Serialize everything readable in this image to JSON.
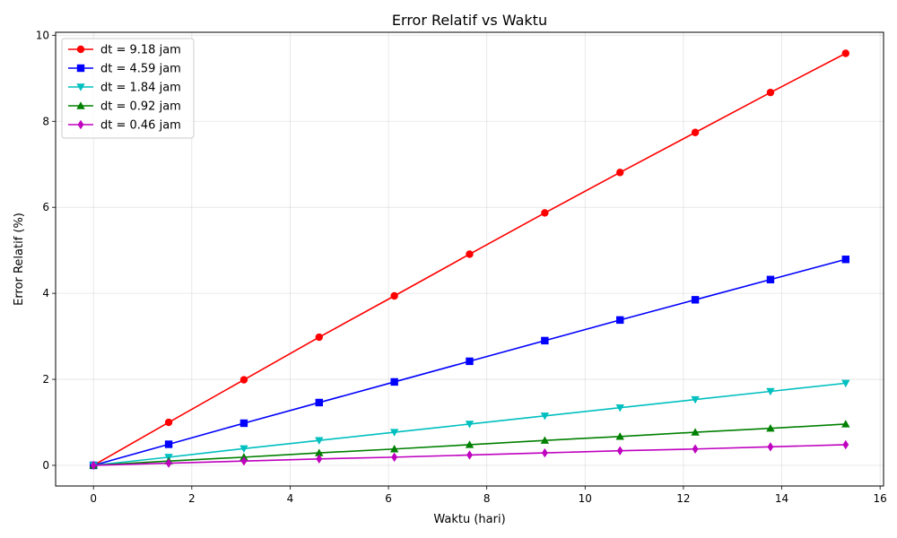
{
  "chart_data": {
    "type": "line",
    "title": "Error Relatif vs Waktu",
    "xlabel": "Waktu (hari)",
    "ylabel": "Error Relatif (%)",
    "xlim": [
      -0.77,
      16.07
    ],
    "ylim": [
      -0.48,
      10.07
    ],
    "xticks": [
      0,
      2,
      4,
      6,
      8,
      10,
      12,
      14,
      16
    ],
    "yticks": [
      0,
      2,
      4,
      6,
      8,
      10
    ],
    "grid": true,
    "legend_position": "upper-left",
    "x": [
      0,
      1.53,
      3.06,
      4.59,
      6.12,
      7.65,
      9.18,
      10.71,
      12.24,
      13.77,
      15.3
    ],
    "series": [
      {
        "name": "dt = 9.18 jam",
        "color": "#ff0000",
        "marker": "circle",
        "values": [
          0,
          1.0,
          1.99,
          2.98,
          3.94,
          4.91,
          5.87,
          6.81,
          7.74,
          8.67,
          9.58
        ]
      },
      {
        "name": "dt = 4.59 jam",
        "color": "#0000ff",
        "marker": "square",
        "values": [
          0,
          0.49,
          0.98,
          1.46,
          1.94,
          2.42,
          2.9,
          3.38,
          3.85,
          4.32,
          4.79
        ]
      },
      {
        "name": "dt = 1.84 jam",
        "color": "#00bfbf",
        "marker": "triangle-down",
        "values": [
          0,
          0.19,
          0.39,
          0.58,
          0.77,
          0.96,
          1.15,
          1.34,
          1.53,
          1.72,
          1.91
        ]
      },
      {
        "name": "dt = 0.92 jam",
        "color": "#008000",
        "marker": "triangle-up",
        "values": [
          0,
          0.1,
          0.19,
          0.29,
          0.38,
          0.48,
          0.58,
          0.67,
          0.77,
          0.86,
          0.96
        ]
      },
      {
        "name": "dt = 0.46 jam",
        "color": "#bf00bf",
        "marker": "diamond",
        "values": [
          0,
          0.05,
          0.1,
          0.15,
          0.19,
          0.24,
          0.29,
          0.34,
          0.38,
          0.43,
          0.48
        ]
      }
    ]
  }
}
